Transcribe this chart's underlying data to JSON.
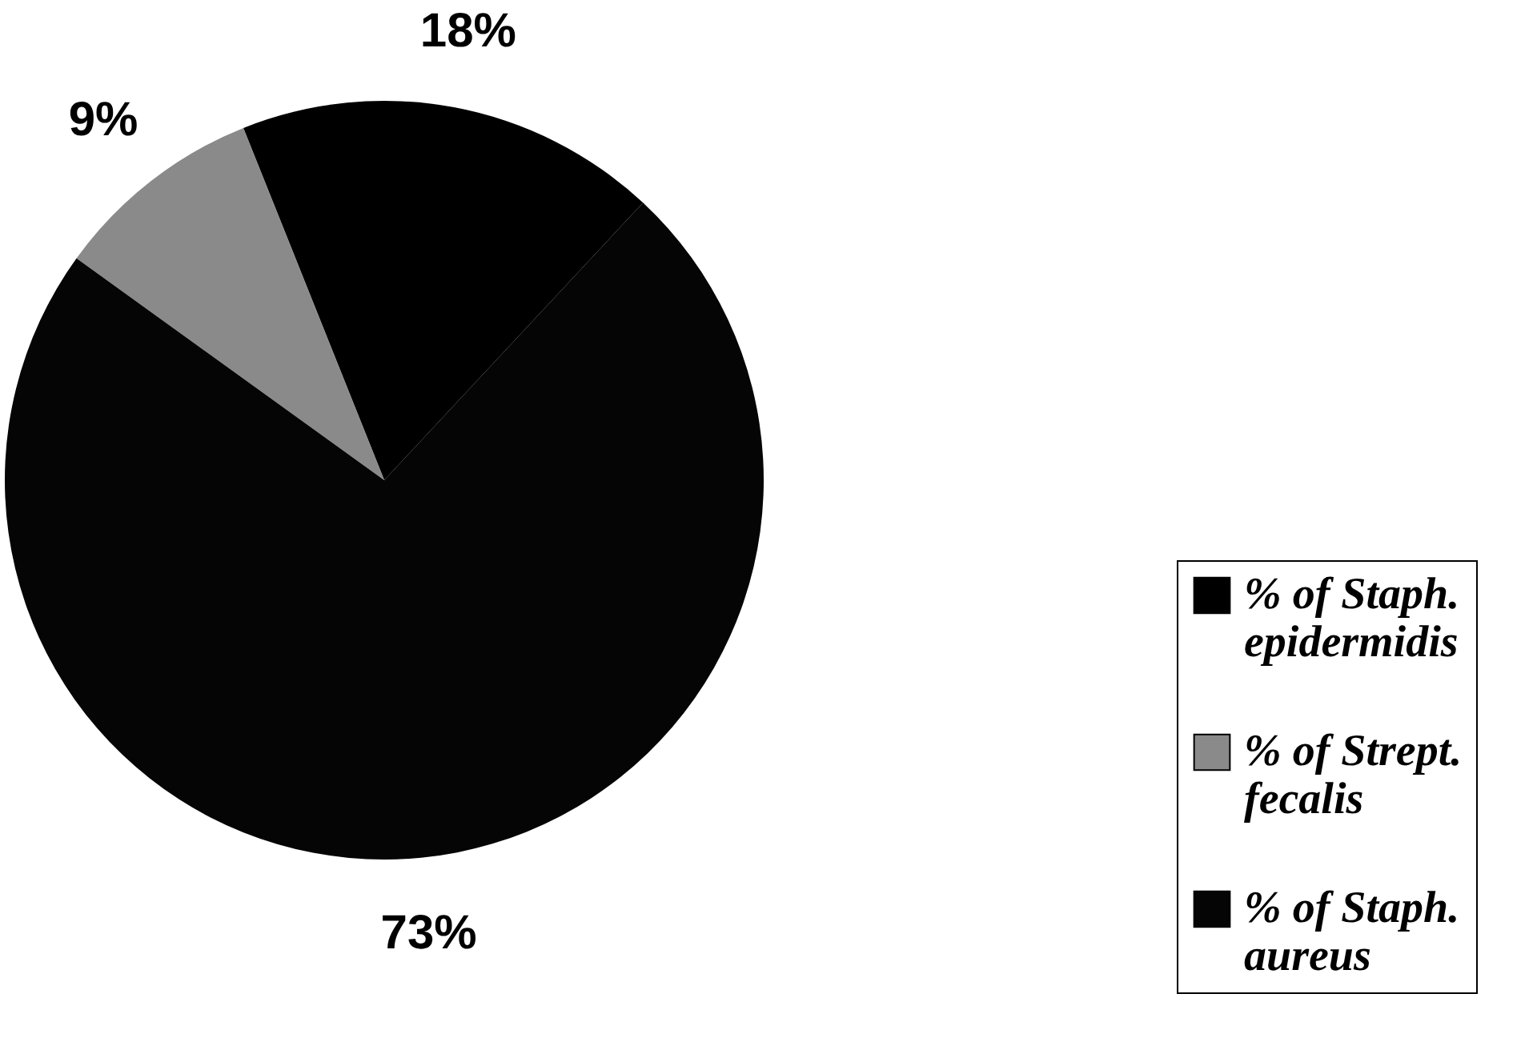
{
  "chart_data": {
    "type": "pie",
    "categories": [
      "% of Staph. epidermidis",
      "% of Strept. fecalis",
      "% of Staph. aureus"
    ],
    "values": [
      18,
      9,
      73
    ],
    "colors": [
      "#000000",
      "#8a8a8a",
      "#050505"
    ],
    "value_labels": [
      "18%",
      "9%",
      "73%"
    ],
    "legend": "bottom right"
  }
}
